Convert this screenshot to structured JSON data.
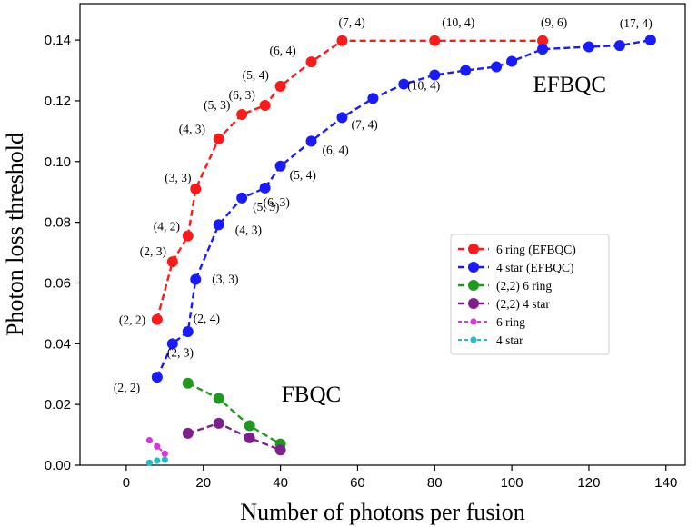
{
  "chart_data": {
    "type": "line",
    "title": "",
    "xlabel": "Number of photons per fusion",
    "ylabel": "Photon loss threshold",
    "xlim": [
      -12,
      145
    ],
    "ylim": [
      0,
      0.152
    ],
    "xticks": [
      0,
      20,
      40,
      60,
      80,
      100,
      120,
      140
    ],
    "yticks": [
      0.0,
      0.02,
      0.04,
      0.06,
      0.08,
      0.1,
      0.12,
      0.14
    ],
    "xtick_labels": [
      "0",
      "20",
      "40",
      "60",
      "80",
      "100",
      "120",
      "140"
    ],
    "ytick_labels": [
      "0.00",
      "0.02",
      "0.04",
      "0.06",
      "0.08",
      "0.10",
      "0.12",
      "0.14"
    ],
    "grid": false,
    "legend_position": "center-right",
    "annotations": [
      {
        "text": "EFBQC",
        "x": 115,
        "y": 0.123
      },
      {
        "text": "FBQC",
        "x": 48,
        "y": 0.021
      }
    ],
    "series": [
      {
        "name": "6 ring (EFBQC)",
        "color": "#ff1a1a",
        "marker": "circle",
        "x": [
          8,
          12,
          16,
          18,
          24,
          30,
          36,
          40,
          48,
          56,
          80,
          108
        ],
        "y": [
          0.048,
          0.067,
          0.0755,
          0.091,
          0.1075,
          0.1155,
          0.1185,
          0.1248,
          0.1328,
          0.1398,
          0.1398,
          0.1398
        ],
        "labels": [
          "(2, 2)",
          "(2, 3)",
          "(4, 2)",
          "(3, 3)",
          "(4, 3)",
          "(5, 3)",
          "(6, 3)",
          "(5, 4)",
          "(6, 4)",
          "(7, 4)",
          "(10, 4)",
          "(9, 6)"
        ]
      },
      {
        "name": "4 star (EFBQC)",
        "color": "#1a1aff",
        "marker": "circle",
        "x": [
          8,
          12,
          16,
          18,
          24,
          30,
          36,
          40,
          48,
          56,
          64,
          72,
          80,
          88,
          96,
          100,
          108,
          120,
          128,
          136
        ],
        "y": [
          0.029,
          0.04,
          0.044,
          0.0612,
          0.0792,
          0.088,
          0.0913,
          0.0985,
          0.1067,
          0.1145,
          0.1208,
          0.1255,
          0.1285,
          0.13,
          0.1312,
          0.133,
          0.137,
          0.1378,
          0.1382,
          0.14
        ],
        "labels": [
          "(2, 2)",
          "(2, 3)",
          "(2, 4)",
          "(3, 3)",
          "(4, 3)",
          "(5, 3)",
          "(6, 3)",
          "(5, 4)",
          "(6, 4)",
          "(7, 4)",
          "",
          "",
          "(10, 4)",
          "",
          "",
          "",
          "",
          "",
          "",
          "(17, 4)"
        ]
      },
      {
        "name": "(2,2) 6 ring",
        "color": "#1f9a1f",
        "marker": "circle",
        "x": [
          16,
          24,
          32,
          40
        ],
        "y": [
          0.027,
          0.022,
          0.013,
          0.007
        ]
      },
      {
        "name": "(2,2) 4 star",
        "color": "#7f1f8f",
        "marker": "circle",
        "x": [
          16,
          24,
          32,
          40
        ],
        "y": [
          0.0105,
          0.0138,
          0.009,
          0.005
        ]
      },
      {
        "name": "6 ring",
        "color": "#dd33dd",
        "marker": "small-circle",
        "x": [
          6,
          8,
          10
        ],
        "y": [
          0.0082,
          0.0062,
          0.0038
        ]
      },
      {
        "name": "4 star",
        "color": "#22bbc8",
        "marker": "small-circle",
        "x": [
          6,
          8,
          10
        ],
        "y": [
          0.0008,
          0.0015,
          0.0018
        ]
      }
    ]
  }
}
